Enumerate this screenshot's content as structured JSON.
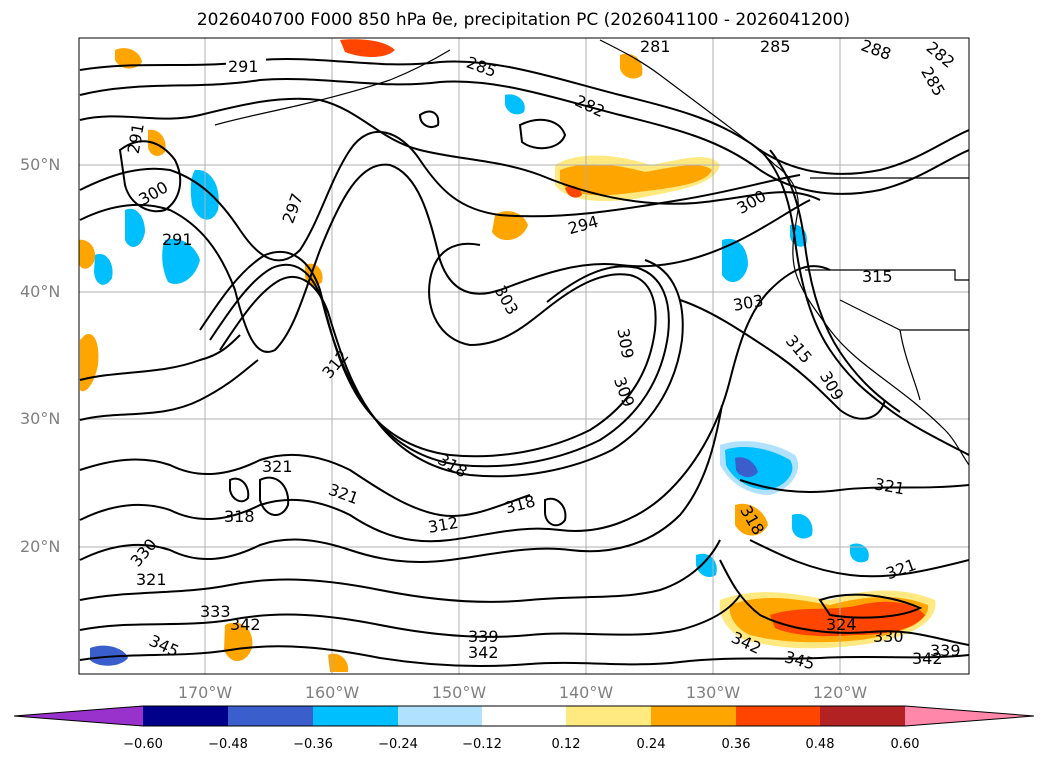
{
  "title": "2026040700 F000 850 hPa θe, precipitation PC (2026041100 - 2026041200)",
  "map": {
    "lat_labels": [
      "50°N",
      "40°N",
      "30°N",
      "20°N"
    ],
    "lon_labels": [
      "170°W",
      "160°W",
      "150°W",
      "140°W",
      "130°W",
      "120°W"
    ],
    "contour_labels": [
      "291",
      "285",
      "282",
      "285",
      "288",
      "282",
      "285",
      "281",
      "291",
      "297",
      "300",
      "291",
      "294",
      "300",
      "303",
      "309",
      "309",
      "315",
      "303",
      "315",
      "309",
      "312",
      "321",
      "318",
      "321",
      "318",
      "318",
      "312",
      "330",
      "321",
      "333",
      "342",
      "345",
      "339",
      "342",
      "318",
      "321",
      "324",
      "330",
      "342",
      "339",
      "345",
      "342",
      "321"
    ],
    "colors": {
      "contour": "#000000",
      "coast": "#000000",
      "grid": "#b0b0b0",
      "orange": "#ffa500",
      "lightorange": "#ffe980",
      "red": "#ff4500",
      "blue": "#00bfff",
      "lightblue": "#b0e2ff",
      "royal": "#3a5fcd"
    }
  },
  "colorbar": {
    "ticks": [
      "−0.60",
      "−0.48",
      "−0.36",
      "−0.24",
      "−0.12",
      "0.12",
      "0.24",
      "0.36",
      "0.48",
      "0.60"
    ],
    "colors": [
      "#9932cc",
      "#00008b",
      "#3a5fcd",
      "#00bfff",
      "#b0e2ff",
      "#ffffff",
      "#ffe980",
      "#ffa500",
      "#ff4500",
      "#b22222",
      "#ff88aa"
    ]
  }
}
